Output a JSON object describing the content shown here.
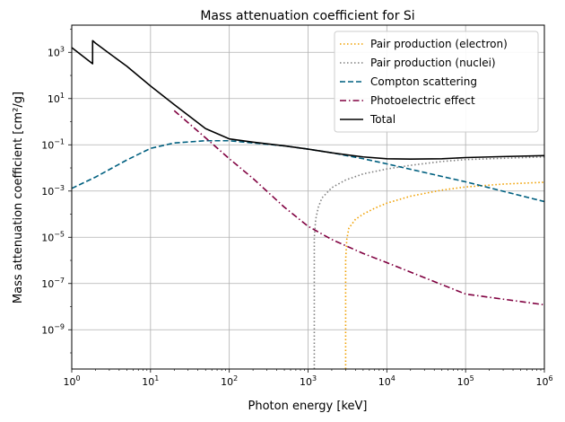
{
  "chart_data": {
    "type": "line",
    "title": "Mass attenuation coefficient for Si",
    "xlabel": "Photon energy [keV]",
    "ylabel": "Mass attenuation coefficient [cm²/g]",
    "xscale": "log",
    "yscale": "log",
    "xlim": [
      1,
      1000000
    ],
    "ylim": [
      2e-11,
      15000
    ],
    "grid": true,
    "legend_position": "top-right",
    "x_ticks": [
      {
        "value": 1,
        "mant": "10",
        "exp": "0"
      },
      {
        "value": 10,
        "mant": "10",
        "exp": "1"
      },
      {
        "value": 100,
        "mant": "10",
        "exp": "2"
      },
      {
        "value": 1000,
        "mant": "10",
        "exp": "3"
      },
      {
        "value": 10000,
        "mant": "10",
        "exp": "4"
      },
      {
        "value": 100000,
        "mant": "10",
        "exp": "5"
      },
      {
        "value": 1000000,
        "mant": "10",
        "exp": "6"
      }
    ],
    "y_ticks": [
      {
        "value": 1e-09,
        "mant": "10",
        "exp": "−9"
      },
      {
        "value": 1e-07,
        "mant": "10",
        "exp": "−7"
      },
      {
        "value": 1e-05,
        "mant": "10",
        "exp": "−5"
      },
      {
        "value": 0.001,
        "mant": "10",
        "exp": "−3"
      },
      {
        "value": 0.1,
        "mant": "10",
        "exp": "−1"
      },
      {
        "value": 10,
        "mant": "10",
        "exp": "1"
      },
      {
        "value": 1000,
        "mant": "10",
        "exp": "3"
      }
    ],
    "series": [
      {
        "name": "Pair production (electron)",
        "color": "#f0a000",
        "style": "dotted",
        "x": [
          3000,
          3000,
          3100,
          3300,
          4000,
          5000,
          7000,
          10000,
          20000,
          50000,
          100000,
          300000,
          1000000
        ],
        "y": [
          2e-11,
          1e-06,
          8e-06,
          2.5e-05,
          6e-05,
          0.0001,
          0.00018,
          0.0003,
          0.0006,
          0.0011,
          0.0015,
          0.002,
          0.0024
        ]
      },
      {
        "name": "Pair production (nuclei)",
        "color": "#808080",
        "style": "dotted",
        "x": [
          1200,
          1200,
          1250,
          1350,
          1500,
          2000,
          3000,
          5000,
          10000,
          20000,
          50000,
          100000,
          1000000
        ],
        "y": [
          2e-11,
          1e-05,
          6e-05,
          0.0002,
          0.0005,
          0.0014,
          0.003,
          0.0055,
          0.009,
          0.013,
          0.019,
          0.023,
          0.03
        ]
      },
      {
        "name": "Compton scattering",
        "color": "#006080",
        "style": "dashed",
        "x": [
          1,
          2,
          5,
          10,
          20,
          50,
          100,
          200,
          500,
          1000,
          2000,
          5000,
          10000,
          100000,
          1000000
        ],
        "y": [
          0.0013,
          0.004,
          0.022,
          0.07,
          0.12,
          0.15,
          0.15,
          0.12,
          0.09,
          0.065,
          0.045,
          0.025,
          0.015,
          0.0025,
          0.00035
        ]
      },
      {
        "name": "Photoelectric effect",
        "color": "#800040",
        "style": "dashdot",
        "x": [
          20,
          50,
          100,
          200,
          500,
          1000,
          2000,
          5000,
          10000,
          100000,
          1000000
        ],
        "y": [
          3,
          0.2,
          0.025,
          0.0035,
          0.0002,
          3e-05,
          8e-06,
          2e-06,
          8e-07,
          3.5e-08,
          1.2e-08
        ]
      },
      {
        "name": "Total",
        "color": "#000000",
        "style": "solid",
        "x": [
          1,
          1.84,
          1.84,
          2,
          3,
          5,
          10,
          20,
          50,
          100,
          200,
          500,
          1000,
          2000,
          5000,
          10000,
          20000,
          50000,
          100000,
          300000,
          1000000
        ],
        "y": [
          1600,
          320,
          3200,
          2500,
          900,
          250,
          35,
          5.5,
          0.5,
          0.18,
          0.13,
          0.09,
          0.065,
          0.045,
          0.03,
          0.025,
          0.024,
          0.025,
          0.028,
          0.031,
          0.034
        ]
      }
    ]
  }
}
